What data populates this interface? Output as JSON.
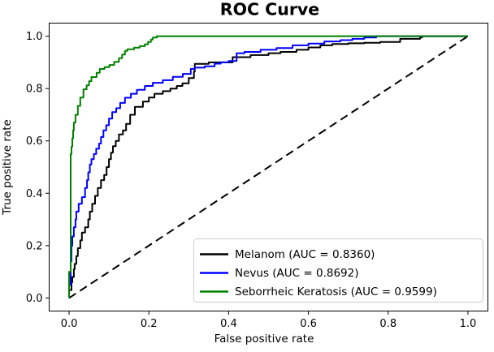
{
  "chart_data": {
    "type": "line",
    "title": "ROC Curve",
    "xlabel": "False positive rate",
    "ylabel": "True positive rate",
    "xlim": [
      -0.05,
      1.05
    ],
    "ylim": [
      -0.05,
      1.05
    ],
    "xtick_values": [
      0.0,
      0.2,
      0.4,
      0.6,
      0.8,
      1.0
    ],
    "xtick_labels": [
      "0.0",
      "0.2",
      "0.4",
      "0.6",
      "0.8",
      "1.0"
    ],
    "ytick_values": [
      0.0,
      0.2,
      0.4,
      0.6,
      0.8,
      1.0
    ],
    "ytick_labels": [
      "0.0",
      "0.2",
      "0.4",
      "0.6",
      "0.8",
      "1.0"
    ],
    "grid": false,
    "line_width": 2,
    "legend": {
      "position": "lower right",
      "entries": [
        {
          "label": "Melanom (AUC = 0.8360)",
          "color": "#000000"
        },
        {
          "label": "Nevus (AUC = 0.8692)",
          "color": "#0000ff"
        },
        {
          "label": "Seborrheic Keratosis (AUC = 0.9599)",
          "color": "#008000"
        }
      ]
    },
    "series": [
      {
        "name": "Melanom",
        "auc": 0.836,
        "color": "#000000",
        "line_style": "solid",
        "points": [
          [
            0,
            0
          ],
          [
            0.006,
            0.03
          ],
          [
            0.008,
            0.06
          ],
          [
            0.012,
            0.08
          ],
          [
            0.014,
            0.11
          ],
          [
            0.018,
            0.13
          ],
          [
            0.022,
            0.16
          ],
          [
            0.028,
            0.19
          ],
          [
            0.032,
            0.22
          ],
          [
            0.04,
            0.25
          ],
          [
            0.048,
            0.27
          ],
          [
            0.052,
            0.3
          ],
          [
            0.058,
            0.33
          ],
          [
            0.065,
            0.36
          ],
          [
            0.072,
            0.39
          ],
          [
            0.08,
            0.42
          ],
          [
            0.088,
            0.45
          ],
          [
            0.094,
            0.47
          ],
          [
            0.1,
            0.5
          ],
          [
            0.105,
            0.53
          ],
          [
            0.11,
            0.555
          ],
          [
            0.117,
            0.58
          ],
          [
            0.125,
            0.6
          ],
          [
            0.135,
            0.625
          ],
          [
            0.143,
            0.64
          ],
          [
            0.153,
            0.665
          ],
          [
            0.165,
            0.7
          ],
          [
            0.185,
            0.73
          ],
          [
            0.2,
            0.75
          ],
          [
            0.214,
            0.766
          ],
          [
            0.235,
            0.78
          ],
          [
            0.254,
            0.79
          ],
          [
            0.27,
            0.8
          ],
          [
            0.284,
            0.81
          ],
          [
            0.3,
            0.82
          ],
          [
            0.313,
            0.84
          ],
          [
            0.315,
            0.865
          ],
          [
            0.35,
            0.894
          ],
          [
            0.41,
            0.9
          ],
          [
            0.455,
            0.92
          ],
          [
            0.5,
            0.928
          ],
          [
            0.53,
            0.935
          ],
          [
            0.57,
            0.94
          ],
          [
            0.6,
            0.948
          ],
          [
            0.63,
            0.957
          ],
          [
            0.66,
            0.965
          ],
          [
            0.7,
            0.97
          ],
          [
            0.74,
            0.973
          ],
          [
            0.78,
            0.975
          ],
          [
            0.83,
            0.978
          ],
          [
            0.88,
            0.99
          ],
          [
            0.885,
            0.995
          ],
          [
            0.93,
            1
          ],
          [
            1,
            1
          ]
        ]
      },
      {
        "name": "Nevus",
        "auc": 0.8692,
        "color": "#0000ff",
        "line_style": "solid",
        "points": [
          [
            0,
            0
          ],
          [
            0.004,
            0.05
          ],
          [
            0.004,
            0.1
          ],
          [
            0.006,
            0.14
          ],
          [
            0.006,
            0.18
          ],
          [
            0.008,
            0.2
          ],
          [
            0.012,
            0.235
          ],
          [
            0.016,
            0.27
          ],
          [
            0.018,
            0.3
          ],
          [
            0.024,
            0.33
          ],
          [
            0.032,
            0.36
          ],
          [
            0.04,
            0.385
          ],
          [
            0.045,
            0.42
          ],
          [
            0.048,
            0.45
          ],
          [
            0.052,
            0.48
          ],
          [
            0.056,
            0.51
          ],
          [
            0.062,
            0.53
          ],
          [
            0.068,
            0.55
          ],
          [
            0.075,
            0.57
          ],
          [
            0.08,
            0.59
          ],
          [
            0.086,
            0.615
          ],
          [
            0.093,
            0.64
          ],
          [
            0.1,
            0.66
          ],
          [
            0.108,
            0.685
          ],
          [
            0.118,
            0.71
          ],
          [
            0.128,
            0.725
          ],
          [
            0.14,
            0.745
          ],
          [
            0.155,
            0.765
          ],
          [
            0.17,
            0.78
          ],
          [
            0.19,
            0.795
          ],
          [
            0.21,
            0.81
          ],
          [
            0.235,
            0.822
          ],
          [
            0.26,
            0.832
          ],
          [
            0.285,
            0.845
          ],
          [
            0.305,
            0.856
          ],
          [
            0.315,
            0.875
          ],
          [
            0.34,
            0.88
          ],
          [
            0.365,
            0.885
          ],
          [
            0.38,
            0.895
          ],
          [
            0.4,
            0.9
          ],
          [
            0.42,
            0.905
          ],
          [
            0.44,
            0.935
          ],
          [
            0.48,
            0.94
          ],
          [
            0.52,
            0.948
          ],
          [
            0.56,
            0.955
          ],
          [
            0.6,
            0.965
          ],
          [
            0.64,
            0.972
          ],
          [
            0.68,
            0.98
          ],
          [
            0.71,
            0.985
          ],
          [
            0.74,
            0.99
          ],
          [
            0.77,
            0.995
          ],
          [
            0.8,
            1
          ],
          [
            1,
            1
          ]
        ]
      },
      {
        "name": "Seborrheic Keratosis",
        "auc": 0.9599,
        "color": "#008000",
        "line_style": "solid",
        "points": [
          [
            0,
            0
          ],
          [
            0.004,
            0.1
          ],
          [
            0.004,
            0.22
          ],
          [
            0.004,
            0.33
          ],
          [
            0.004,
            0.42
          ],
          [
            0.004,
            0.505
          ],
          [
            0.006,
            0.55
          ],
          [
            0.008,
            0.578
          ],
          [
            0.01,
            0.61
          ],
          [
            0.012,
            0.64
          ],
          [
            0.016,
            0.67
          ],
          [
            0.022,
            0.7
          ],
          [
            0.028,
            0.734
          ],
          [
            0.036,
            0.766
          ],
          [
            0.044,
            0.797
          ],
          [
            0.05,
            0.812
          ],
          [
            0.056,
            0.828
          ],
          [
            0.069,
            0.844
          ],
          [
            0.077,
            0.86
          ],
          [
            0.089,
            0.875
          ],
          [
            0.101,
            0.882
          ],
          [
            0.113,
            0.89
          ],
          [
            0.125,
            0.902
          ],
          [
            0.133,
            0.916
          ],
          [
            0.14,
            0.93
          ],
          [
            0.146,
            0.944
          ],
          [
            0.163,
            0.95
          ],
          [
            0.177,
            0.956
          ],
          [
            0.19,
            0.962
          ],
          [
            0.198,
            0.969
          ],
          [
            0.205,
            0.978
          ],
          [
            0.21,
            0.9875
          ],
          [
            0.22,
            0.995
          ],
          [
            0.391,
            1
          ],
          [
            1,
            1
          ]
        ]
      }
    ],
    "reference_line": {
      "name": "chance-diagonal",
      "points": [
        [
          0,
          0
        ],
        [
          1,
          1
        ]
      ],
      "color": "#000000",
      "line_style": "dashed"
    }
  }
}
